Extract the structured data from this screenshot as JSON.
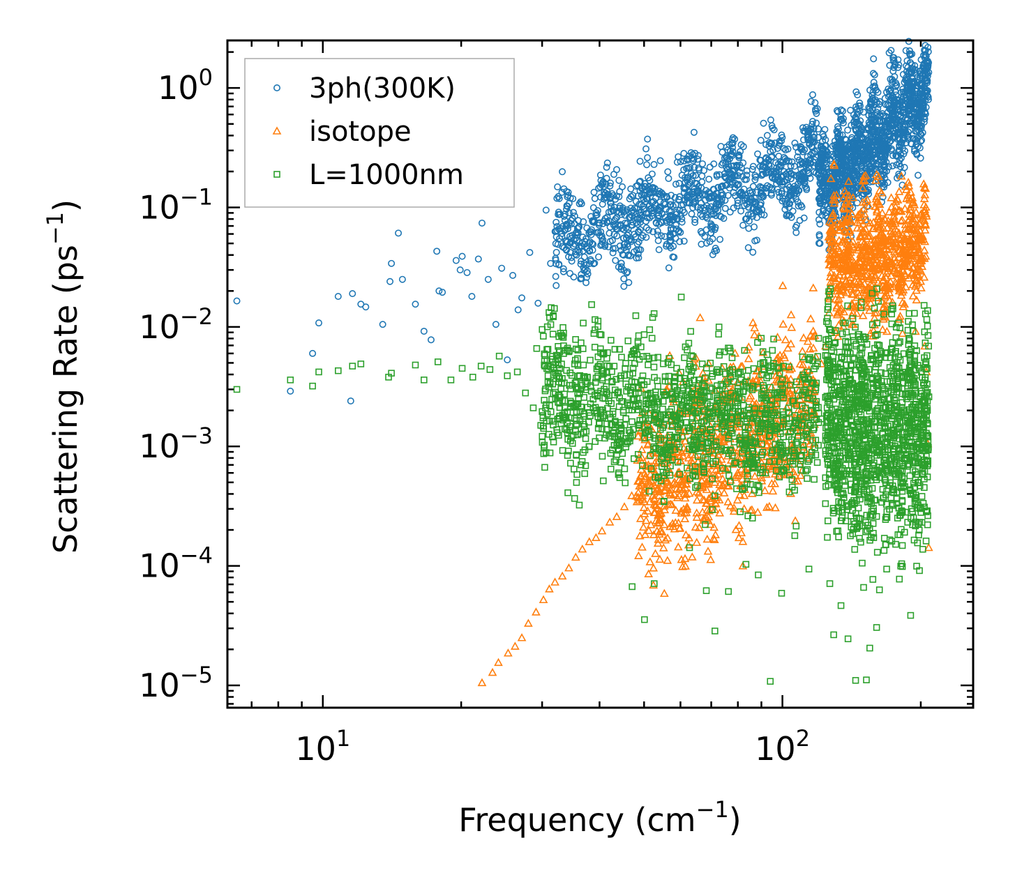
{
  "chart_data": {
    "type": "scatter",
    "title": "",
    "xlabel": "Frequency (cm$^{-1}$)",
    "ylabel": "Scattering Rate (ps$^{-1}$)",
    "xlabel_parts": {
      "base": "Frequency (cm",
      "sup": "−1",
      "tail": ")"
    },
    "ylabel_parts": {
      "base": "Scattering Rate (ps",
      "sup": "−1",
      "tail": ")"
    },
    "xscale": "log",
    "yscale": "log",
    "xlim": [
      6.2,
      260
    ],
    "ylim": [
      6.5e-06,
      2.5
    ],
    "x_ticks": [
      {
        "value": 10,
        "base": "10",
        "exp": "1"
      },
      {
        "value": 100,
        "base": "10",
        "exp": "2"
      }
    ],
    "y_ticks": [
      {
        "value": 1,
        "base": "10",
        "exp": "0"
      },
      {
        "value": 0.1,
        "base": "10",
        "exp": "−1"
      },
      {
        "value": 0.01,
        "base": "10",
        "exp": "−2"
      },
      {
        "value": 0.001,
        "base": "10",
        "exp": "−3"
      },
      {
        "value": 0.0001,
        "base": "10",
        "exp": "−4"
      },
      {
        "value": 1e-05,
        "base": "10",
        "exp": "−5"
      }
    ],
    "legend_position": "top-left",
    "series": [
      {
        "name": "3ph(300K)",
        "marker": "circle",
        "color": "#1f77b4",
        "points": [
          [
            6.5,
            0.0165
          ],
          [
            8.5,
            0.0029
          ],
          [
            9.5,
            0.006
          ],
          [
            9.8,
            0.0108
          ],
          [
            10.8,
            0.018
          ],
          [
            11.5,
            0.0024
          ],
          [
            11.6,
            0.019
          ],
          [
            12.1,
            0.0155
          ],
          [
            12.4,
            0.0147
          ],
          [
            13.5,
            0.0105
          ],
          [
            14.1,
            0.034
          ],
          [
            14.0,
            0.024
          ],
          [
            14.6,
            0.061
          ],
          [
            14.9,
            0.025
          ],
          [
            15.9,
            0.0155
          ],
          [
            16.6,
            0.0092
          ],
          [
            17.2,
            0.0078
          ],
          [
            17.7,
            0.043
          ],
          [
            17.9,
            0.02
          ],
          [
            18.2,
            0.0195
          ],
          [
            19.5,
            0.036
          ],
          [
            19.9,
            0.03
          ],
          [
            20.1,
            0.039
          ],
          [
            20.6,
            0.0285
          ],
          [
            21.1,
            0.018
          ],
          [
            21.8,
            0.037
          ],
          [
            22.2,
            0.074
          ],
          [
            22.9,
            0.025
          ],
          [
            23.8,
            0.0105
          ],
          [
            24.5,
            0.031
          ],
          [
            25.2,
            0.0053
          ],
          [
            25.9,
            0.027
          ],
          [
            26.6,
            0.0139
          ],
          [
            27.1,
            0.0175
          ],
          [
            28.2,
            0.042
          ],
          [
            29.4,
            0.0158
          ],
          [
            30.6,
            0.095
          ],
          [
            31.3,
            0.034
          ],
          [
            32.6,
            0.066
          ],
          [
            33.4,
            0.029
          ],
          [
            34.7,
            0.055
          ],
          [
            36.1,
            0.047
          ],
          [
            37.5,
            0.026
          ],
          [
            38.9,
            0.075
          ],
          [
            40.4,
            0.155
          ],
          [
            42.2,
            0.052
          ],
          [
            44.1,
            0.123
          ],
          [
            46.3,
            0.061
          ],
          [
            48.2,
            0.044
          ],
          [
            50.6,
            0.118
          ],
          [
            53.7,
            0.096
          ],
          [
            56.1,
            0.122
          ],
          [
            58.9,
            0.066
          ],
          [
            62.0,
            0.169
          ],
          [
            65.1,
            0.135
          ],
          [
            67.8,
            0.057
          ],
          [
            71.2,
            0.043
          ],
          [
            74.9,
            0.181
          ],
          [
            78.3,
            0.099
          ],
          [
            82.1,
            0.236
          ],
          [
            86.4,
            0.15
          ],
          [
            90.3,
            0.207
          ],
          [
            95.2,
            0.176
          ],
          [
            101.6,
            0.303
          ],
          [
            106.2,
            0.221
          ],
          [
            111.2,
            0.368
          ],
          [
            117.2,
            0.41
          ],
          [
            121.0,
            0.282
          ],
          [
            125.1,
            0.16
          ],
          [
            128.6,
            0.123
          ],
          [
            132.4,
            0.155
          ],
          [
            135.9,
            0.234
          ],
          [
            139.6,
            0.321
          ],
          [
            143.3,
            0.52
          ],
          [
            147.2,
            0.748
          ],
          [
            150.1,
            0.628
          ],
          [
            154.9,
            0.312
          ],
          [
            159.4,
            0.289
          ],
          [
            164.3,
            0.415
          ],
          [
            169.7,
            0.628
          ],
          [
            174.6,
            0.829
          ],
          [
            178.9,
            0.528
          ],
          [
            183.6,
            0.419
          ],
          [
            189.1,
            0.669
          ],
          [
            194.5,
            0.954
          ],
          [
            199.6,
            1.083
          ],
          [
            205.2,
            1.162
          ],
          [
            208.1,
            1.35
          ]
        ]
      },
      {
        "name": "isotope",
        "marker": "triangle",
        "color": "#ff7f0e",
        "points": [
          [
            22.2,
            1.05e-05
          ],
          [
            23.4,
            1.28e-05
          ],
          [
            24.1,
            1.55e-05
          ],
          [
            25.3,
            1.86e-05
          ],
          [
            26.2,
            2.12e-05
          ],
          [
            27.1,
            2.5e-05
          ],
          [
            28.0,
            3.3e-05
          ],
          [
            29.1,
            4.1e-05
          ],
          [
            30.2,
            5.2e-05
          ],
          [
            31.1,
            6.4e-05
          ],
          [
            32.0,
            7.3e-05
          ],
          [
            33.2,
            8.2e-05
          ],
          [
            34.3,
            9.6e-05
          ],
          [
            35.5,
            0.000118
          ],
          [
            36.7,
            0.000138
          ],
          [
            38.0,
            0.000159
          ],
          [
            39.3,
            0.000172
          ],
          [
            40.5,
            0.000196
          ],
          [
            42.1,
            0.000232
          ],
          [
            43.6,
            0.000258
          ],
          [
            45.3,
            0.000312
          ],
          [
            47.0,
            0.000386
          ],
          [
            48.8,
            0.000514
          ],
          [
            50.4,
            0.000695
          ],
          [
            52.1,
            0.000914
          ],
          [
            54.2,
            0.00121
          ],
          [
            56.5,
            0.000826
          ],
          [
            58.6,
            0.000482
          ],
          [
            61.0,
            0.000962
          ],
          [
            63.5,
            0.00143
          ],
          [
            66.1,
            0.00105
          ],
          [
            68.7,
            0.00206
          ],
          [
            71.5,
            0.00294
          ],
          [
            74.6,
            0.00232
          ],
          [
            77.8,
            0.00151
          ],
          [
            81.2,
            0.000817
          ],
          [
            84.6,
            0.00119
          ],
          [
            88.3,
            0.00206
          ],
          [
            92.2,
            0.00125
          ],
          [
            96.1,
            0.000711
          ],
          [
            100.1,
            0.00157
          ],
          [
            104.6,
            0.00251
          ],
          [
            109.1,
            0.00332
          ],
          [
            114.1,
            0.00431
          ],
          [
            118.2,
            0.00561
          ],
          [
            121.6,
            0.0049
          ],
          [
            124.1,
            0.0069
          ],
          [
            126.3,
            0.0202
          ],
          [
            127.5,
            0.065
          ],
          [
            129.4,
            0.231
          ],
          [
            131.1,
            0.127
          ],
          [
            133.3,
            0.064
          ],
          [
            136.0,
            0.042
          ],
          [
            139.2,
            0.031
          ],
          [
            142.3,
            0.052
          ],
          [
            145.6,
            0.075
          ],
          [
            148.2,
            0.091
          ],
          [
            150.6,
            0.182
          ],
          [
            152.9,
            0.116
          ],
          [
            155.3,
            0.074
          ],
          [
            158.7,
            0.049
          ],
          [
            162.3,
            0.034
          ],
          [
            165.4,
            0.022
          ],
          [
            168.6,
            0.039
          ],
          [
            172.3,
            0.063
          ],
          [
            175.6,
            0.048
          ],
          [
            178.4,
            0.031
          ],
          [
            181.2,
            0.026
          ],
          [
            184.7,
            0.028
          ],
          [
            188.6,
            0.047
          ],
          [
            192.1,
            0.066
          ],
          [
            195.4,
            0.091
          ],
          [
            198.6,
            0.057
          ],
          [
            201.3,
            0.032
          ],
          [
            204.1,
            0.0069
          ],
          [
            205.7,
            0.0042
          ],
          [
            207.2,
            0.00105
          ],
          [
            208.1,
            0.000142
          ]
        ]
      },
      {
        "name": "L=1000nm",
        "marker": "square",
        "color": "#2ca02c",
        "points": [
          [
            6.5,
            0.003
          ],
          [
            8.5,
            0.0036
          ],
          [
            9.5,
            0.0032
          ],
          [
            9.8,
            0.0042
          ],
          [
            10.8,
            0.0043
          ],
          [
            11.6,
            0.0047
          ],
          [
            12.1,
            0.0049
          ],
          [
            13.9,
            0.0038
          ],
          [
            14.1,
            0.0041
          ],
          [
            15.9,
            0.0048
          ],
          [
            16.6,
            0.0036
          ],
          [
            17.8,
            0.0051
          ],
          [
            19.0,
            0.0036
          ],
          [
            20.1,
            0.0045
          ],
          [
            21.2,
            0.0038
          ],
          [
            22.1,
            0.0047
          ],
          [
            23.1,
            0.0044
          ],
          [
            24.2,
            0.0057
          ],
          [
            25.2,
            0.0039
          ],
          [
            26.5,
            0.0042
          ],
          [
            27.6,
            0.0028
          ],
          [
            28.7,
            0.0021
          ],
          [
            29.2,
            0.0066
          ],
          [
            29.8,
            0.0015
          ],
          [
            30.9,
            0.0039
          ],
          [
            31.6,
            0.0012
          ],
          [
            32.5,
            0.0048
          ],
          [
            33.6,
            0.0021
          ],
          [
            34.3,
            0.0062
          ],
          [
            35.4,
            0.0034
          ],
          [
            35.8,
            0.00125
          ],
          [
            36.9,
            0.0048
          ],
          [
            37.3,
            0.00069
          ],
          [
            38.4,
            0.0029
          ],
          [
            39.5,
            0.0019
          ],
          [
            40.6,
            0.0036
          ],
          [
            41.9,
            0.0024
          ],
          [
            43.2,
            0.0065
          ],
          [
            44.6,
            0.0011
          ],
          [
            45.8,
            0.0029
          ],
          [
            47.1,
            6.7e-05
          ],
          [
            48.6,
            0.0022
          ],
          [
            50.1,
            3.55e-05
          ],
          [
            51.6,
            0.0019
          ],
          [
            52.6,
            7.1e-05
          ],
          [
            54.3,
            0.0017
          ],
          [
            56.4,
            0.0035
          ],
          [
            58.2,
            0.0012
          ],
          [
            60.3,
            0.0027
          ],
          [
            62.8,
            0.000142
          ],
          [
            64.4,
            0.0024
          ],
          [
            66.6,
            0.00104
          ],
          [
            68.3,
            6.2e-05
          ],
          [
            69.6,
            0.0031
          ],
          [
            71.3,
            2.85e-05
          ],
          [
            73.8,
            0.0014
          ],
          [
            76.3,
            6.1e-05
          ],
          [
            78.3,
            0.0026
          ],
          [
            81.1,
            0.0018
          ],
          [
            83.3,
            0.000103
          ],
          [
            86.4,
            0.0032
          ],
          [
            88.6,
            8.4e-05
          ],
          [
            91.6,
            0.0019
          ],
          [
            94.1,
            1.08e-05
          ],
          [
            97.6,
            0.0027
          ],
          [
            99.6,
            5.9e-05
          ],
          [
            103.2,
            0.0021
          ],
          [
            106.4,
            0.000179
          ],
          [
            110.1,
            0.0015
          ],
          [
            114.2,
            9.4e-05
          ],
          [
            118.2,
            0.0031
          ],
          [
            121.3,
            0.0017
          ],
          [
            124.1,
            0.00092
          ],
          [
            126.8,
            7.1e-05
          ],
          [
            129.3,
            2.65e-05
          ],
          [
            131.9,
            0.00041
          ],
          [
            134.1,
            4.65e-05
          ],
          [
            136.2,
            0.0018
          ],
          [
            138.9,
            2.45e-05
          ],
          [
            141.7,
            0.0027
          ],
          [
            144.3,
            1.1e-05
          ],
          [
            147.1,
            0.00017
          ],
          [
            150.2,
            6.6e-05
          ],
          [
            152.3,
            1.11e-05
          ],
          [
            154.9,
            2.05e-05
          ],
          [
            157.4,
            0.00095
          ],
          [
            160.3,
            3.05e-05
          ],
          [
            162.6,
            6.3e-05
          ],
          [
            165.2,
            0.0031
          ],
          [
            168.6,
            9.4e-05
          ],
          [
            171.8,
            0.0019
          ],
          [
            175.3,
            0.00062
          ],
          [
            178.5,
            0.0014
          ],
          [
            182.4,
            0.000148
          ],
          [
            186.3,
            0.0025
          ],
          [
            190.1,
            3.85e-05
          ],
          [
            194.1,
            0.00082
          ],
          [
            197.6,
            0.0021
          ],
          [
            200.2,
            0.00028
          ],
          [
            202.6,
            0.0034
          ],
          [
            205.1,
            0.0051
          ],
          [
            207.4,
            0.0012
          ],
          [
            208.3,
            0.0026
          ]
        ]
      }
    ],
    "clusters": [
      {
        "series": 0,
        "count": 1100,
        "x": [
          32,
          120
        ],
        "ylog_mid": [
          -1.3,
          -0.6
        ],
        "spread": 0.18
      },
      {
        "series": 0,
        "count": 1400,
        "x": [
          120,
          208
        ],
        "ylog_mid": [
          -0.9,
          0.0
        ],
        "spread": 0.2
      },
      {
        "series": 1,
        "count": 900,
        "x": [
          48,
          118
        ],
        "ylog_mid": [
          -3.4,
          -2.6
        ],
        "spread": 0.35
      },
      {
        "series": 1,
        "count": 800,
        "x": [
          126,
          206
        ],
        "ylog_mid": [
          -1.5,
          -1.3
        ],
        "spread": 0.25
      },
      {
        "series": 2,
        "count": 1200,
        "x": [
          30,
          120
        ],
        "ylog_mid": [
          -2.55,
          -2.85
        ],
        "spread": 0.3
      },
      {
        "series": 2,
        "count": 1300,
        "x": [
          124,
          208
        ],
        "ylog_mid": [
          -2.8,
          -2.9
        ],
        "spread": 0.45
      }
    ]
  }
}
